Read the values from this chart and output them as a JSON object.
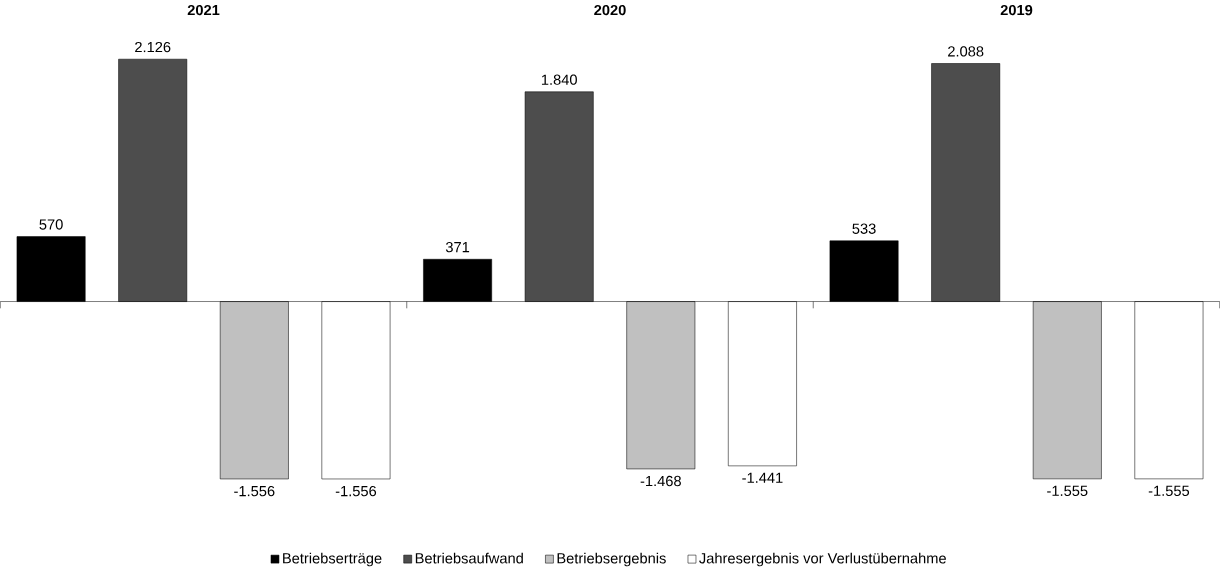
{
  "chart_data": {
    "type": "bar",
    "categories": [
      "2021",
      "2020",
      "2019"
    ],
    "series": [
      {
        "name": "Betriebserträge",
        "color": "#000000",
        "values": [
          570,
          371,
          533
        ],
        "value_labels": [
          "570",
          "371",
          "533"
        ]
      },
      {
        "name": "Betriebsaufwand",
        "color": "#4d4d4d",
        "values": [
          2126,
          1840,
          2088
        ],
        "value_labels": [
          "2.126",
          "1.840",
          "2.088"
        ]
      },
      {
        "name": "Betriebsergebnis",
        "color": "#c0c0c0",
        "values": [
          -1556,
          -1468,
          -1555
        ],
        "value_labels": [
          "-1.556",
          "-1.468",
          "-1.555"
        ]
      },
      {
        "name": "Jahresergebnis vor Verlustübernahme",
        "color": "#ffffff",
        "values": [
          -1556,
          -1441,
          -1555
        ],
        "value_labels": [
          "-1.556",
          "-1.441",
          "-1.555"
        ]
      }
    ],
    "legend": "bottom"
  }
}
